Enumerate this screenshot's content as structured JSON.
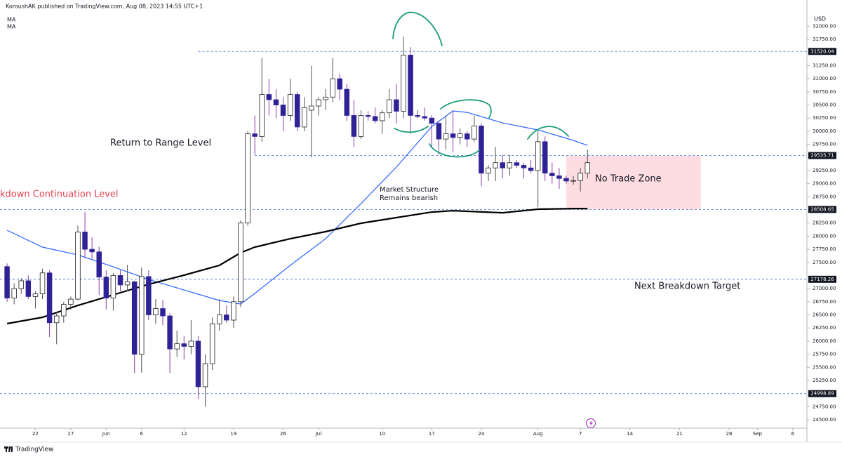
{
  "chart_data": {
    "type": "candlestick",
    "header": "KoroushAK published on TradingView.com, Aug 08, 2023 14:55 UTC+1",
    "currency": "USD",
    "brand": "TradingView",
    "up_color": "#ffffff",
    "down_color": "#2e2396",
    "x": [
      "2023-05-18",
      "2023-05-19",
      "2023-05-20",
      "2023-05-21",
      "2023-05-22",
      "2023-05-23",
      "2023-05-24",
      "2023-05-25",
      "2023-05-26",
      "2023-05-27",
      "2023-05-28",
      "2023-05-29",
      "2023-05-30",
      "2023-05-31",
      "2023-06-01",
      "2023-06-02",
      "2023-06-03",
      "2023-06-04",
      "2023-06-05",
      "2023-06-06",
      "2023-06-07",
      "2023-06-08",
      "2023-06-09",
      "2023-06-10",
      "2023-06-11",
      "2023-06-12",
      "2023-06-13",
      "2023-06-14",
      "2023-06-15",
      "2023-06-16",
      "2023-06-17",
      "2023-06-18",
      "2023-06-19",
      "2023-06-20",
      "2023-06-21",
      "2023-06-22",
      "2023-06-23",
      "2023-06-24",
      "2023-06-25",
      "2023-06-26",
      "2023-06-27",
      "2023-06-28",
      "2023-06-29",
      "2023-06-30",
      "2023-07-01",
      "2023-07-02",
      "2023-07-03",
      "2023-07-04",
      "2023-07-05",
      "2023-07-06",
      "2023-07-07",
      "2023-07-08",
      "2023-07-09",
      "2023-07-10",
      "2023-07-11",
      "2023-07-12",
      "2023-07-13",
      "2023-07-14",
      "2023-07-15",
      "2023-07-16",
      "2023-07-17",
      "2023-07-18",
      "2023-07-19",
      "2023-07-20",
      "2023-07-21",
      "2023-07-22",
      "2023-07-23",
      "2023-07-24",
      "2023-07-25",
      "2023-07-26",
      "2023-07-27",
      "2023-07-28",
      "2023-07-29",
      "2023-07-30",
      "2023-07-31",
      "2023-08-01",
      "2023-08-02",
      "2023-08-03",
      "2023-08-04",
      "2023-08-05",
      "2023-08-06",
      "2023-08-07",
      "2023-08-08"
    ],
    "open": [
      27420,
      26820,
      27000,
      27150,
      26850,
      26900,
      27300,
      26350,
      26480,
      26700,
      26800,
      28080,
      27750,
      27700,
      27220,
      26820,
      27250,
      27070,
      27130,
      25750,
      27230,
      26500,
      26620,
      26480,
      25850,
      25950,
      25900,
      26000,
      25130,
      25570,
      26330,
      26500,
      26400,
      26750,
      28250,
      29950,
      29900,
      30700,
      30600,
      30500,
      30300,
      30700,
      30080,
      30400,
      30480,
      30600,
      30650,
      31000,
      30800,
      30300,
      29900,
      30300,
      30280,
      30200,
      30350,
      30600,
      30380,
      31450,
      30300,
      30280,
      30250,
      30150,
      29850,
      29950,
      29880,
      29950,
      29850,
      30100,
      29200,
      29300,
      29400,
      29300,
      29400,
      29350,
      29300,
      29250,
      29800,
      29200,
      29150,
      29100,
      29050,
      29060,
      29200
    ],
    "high": [
      27480,
      27100,
      27200,
      27250,
      26950,
      27380,
      27350,
      26550,
      26750,
      26850,
      28200,
      28460,
      27980,
      27800,
      27350,
      27300,
      27350,
      27450,
      27150,
      27400,
      27350,
      26800,
      26780,
      26530,
      26200,
      26100,
      26400,
      26100,
      25750,
      26450,
      26800,
      26680,
      26850,
      28300,
      30000,
      30300,
      31400,
      31000,
      30800,
      30650,
      31000,
      30750,
      30650,
      31250,
      30650,
      30800,
      31400,
      31100,
      30900,
      30600,
      30400,
      30380,
      30450,
      30400,
      30800,
      30900,
      31800,
      31600,
      30400,
      30450,
      30300,
      30200,
      30300,
      30400,
      30050,
      30000,
      30300,
      30150,
      29350,
      29700,
      29550,
      29550,
      29450,
      29400,
      29450,
      30000,
      29900,
      29400,
      29300,
      29150,
      29150,
      29300,
      29650
    ],
    "low": [
      26750,
      26700,
      26900,
      26800,
      26620,
      26800,
      26080,
      25940,
      26350,
      26600,
      26780,
      27580,
      27560,
      26880,
      26600,
      26580,
      26950,
      26950,
      25390,
      25400,
      26400,
      26330,
      26300,
      25390,
      25700,
      25650,
      25750,
      24900,
      24750,
      25450,
      26200,
      26350,
      26250,
      26650,
      28200,
      29550,
      29800,
      30300,
      30250,
      30000,
      30200,
      30000,
      30000,
      29500,
      30300,
      30400,
      30550,
      30600,
      30200,
      29700,
      29850,
      30200,
      30150,
      29950,
      30250,
      30150,
      30250,
      29950,
      30250,
      30200,
      29700,
      29550,
      29650,
      29600,
      29750,
      29700,
      29800,
      28950,
      29050,
      29050,
      29100,
      29150,
      29300,
      29100,
      29200,
      28550,
      29050,
      29000,
      28900,
      29000,
      28980,
      28850,
      29100
    ],
    "close": [
      26820,
      27000,
      27150,
      26850,
      26900,
      27300,
      26350,
      26480,
      26700,
      26800,
      28080,
      27750,
      27700,
      27220,
      26820,
      27250,
      27070,
      27130,
      25750,
      27230,
      26500,
      26620,
      26480,
      25850,
      25950,
      25900,
      26000,
      25130,
      25570,
      26330,
      26500,
      26400,
      26750,
      28250,
      29950,
      29900,
      30700,
      30600,
      30500,
      30300,
      30700,
      30080,
      30450,
      30480,
      30600,
      30650,
      31000,
      30800,
      30300,
      29900,
      30300,
      30280,
      30200,
      30350,
      30600,
      30380,
      31450,
      30300,
      30280,
      30250,
      30150,
      29850,
      29950,
      29880,
      29950,
      29850,
      30100,
      29200,
      29300,
      29400,
      29300,
      29400,
      29350,
      29300,
      29250,
      29800,
      29200,
      29150,
      29100,
      29050,
      29060,
      29200,
      29400
    ],
    "series": [
      {
        "name": "MA",
        "color": "#2962ff",
        "x": [
          "2023-05-18",
          "2023-05-23",
          "2023-05-28",
          "2023-06-02",
          "2023-06-07",
          "2023-06-12",
          "2023-06-17",
          "2023-06-20",
          "2023-06-22",
          "2023-06-27",
          "2023-07-02",
          "2023-07-07",
          "2023-07-12",
          "2023-07-17",
          "2023-07-20",
          "2023-07-22",
          "2023-07-27",
          "2023-08-01",
          "2023-08-06",
          "2023-08-08"
        ],
        "values": [
          28112,
          27791,
          27643,
          27416,
          27175,
          26974,
          26774,
          26707,
          26908,
          27443,
          27951,
          28620,
          29316,
          30091,
          30386,
          30359,
          30158,
          30024,
          29824,
          29730
        ]
      },
      {
        "name": "MA",
        "color": "#000000",
        "x": [
          "2023-05-18",
          "2023-05-23",
          "2023-05-28",
          "2023-06-02",
          "2023-06-07",
          "2023-06-12",
          "2023-06-17",
          "2023-06-20",
          "2023-06-22",
          "2023-06-27",
          "2023-07-02",
          "2023-07-07",
          "2023-07-12",
          "2023-07-17",
          "2023-07-20",
          "2023-07-22",
          "2023-07-27",
          "2023-08-01",
          "2023-08-06",
          "2023-08-08"
        ],
        "values": [
          26333,
          26453,
          26680,
          26881,
          27082,
          27256,
          27443,
          27684,
          27791,
          27951,
          28085,
          28246,
          28353,
          28459,
          28486,
          28473,
          28446,
          28513,
          28526,
          28526
        ]
      }
    ],
    "levels": [
      {
        "value": 31520.04,
        "start": "2023-06-14"
      },
      {
        "value": 29535.71,
        "start": "2023-06-22"
      },
      {
        "value": 28508.65,
        "start": "2023-05-17"
      },
      {
        "value": 27178.26,
        "start": "2023-05-17"
      },
      {
        "value": 24998.89,
        "start": "2023-05-17"
      }
    ],
    "zone": {
      "label": "No Trade Zone",
      "x": [
        "2023-08-05",
        "2023-08-24"
      ],
      "y": [
        28510,
        29530
      ]
    },
    "annotations": {
      "range": "Return to Range Level",
      "continuation": "kdown Continuation Level",
      "structure_1": "Market Structure",
      "structure_2": "Remains bearish",
      "target": "Next Breakdown Target"
    },
    "xlim": [
      "2023-05-17",
      "2023-09-08"
    ],
    "xticks": [
      {
        "value": "2023-05-22",
        "label": "22"
      },
      {
        "value": "2023-05-27",
        "label": "27"
      },
      {
        "value": "2023-06-01",
        "label": "Jun"
      },
      {
        "value": "2023-06-06",
        "label": "6"
      },
      {
        "value": "2023-06-12",
        "label": "12"
      },
      {
        "value": "2023-06-19",
        "label": "19"
      },
      {
        "value": "2023-06-26",
        "label": "26"
      },
      {
        "value": "2023-07-01",
        "label": "Jul"
      },
      {
        "value": "2023-07-10",
        "label": "10"
      },
      {
        "value": "2023-07-17",
        "label": "17"
      },
      {
        "value": "2023-07-24",
        "label": "24"
      },
      {
        "value": "2023-08-01",
        "label": "Aug"
      },
      {
        "value": "2023-08-07",
        "label": "7"
      },
      {
        "value": "2023-08-14",
        "label": "14"
      },
      {
        "value": "2023-08-21",
        "label": "21"
      },
      {
        "value": "2023-08-28",
        "label": "28"
      },
      {
        "value": "2023-09-01",
        "label": "Sep"
      },
      {
        "value": "2023-09-06",
        "label": "6"
      }
    ],
    "ylim": [
      24340,
      32500
    ],
    "yticks": [
      {
        "value": 32000,
        "label": "32000.00"
      },
      {
        "value": 31750,
        "label": "31750.00"
      },
      {
        "value": 31250,
        "label": "31250.00"
      },
      {
        "value": 31000,
        "label": "31000.00"
      },
      {
        "value": 30750,
        "label": "30750.00"
      },
      {
        "value": 30500,
        "label": "30500.00"
      },
      {
        "value": 30250,
        "label": "30250.00"
      },
      {
        "value": 30000,
        "label": "30000.00"
      },
      {
        "value": 29750,
        "label": "29750.00"
      },
      {
        "value": 29250,
        "label": "29250.00"
      },
      {
        "value": 29000,
        "label": "29000.00"
      },
      {
        "value": 28750,
        "label": "28750.00"
      },
      {
        "value": 28250,
        "label": "28250.00"
      },
      {
        "value": 28000,
        "label": "28000.00"
      },
      {
        "value": 27750,
        "label": "27750.00"
      },
      {
        "value": 27500,
        "label": "27500.00"
      },
      {
        "value": 27000,
        "label": "27000.00"
      },
      {
        "value": 26750,
        "label": "26750.00"
      },
      {
        "value": 26500,
        "label": "26500.00"
      },
      {
        "value": 26250,
        "label": "26250.00"
      },
      {
        "value": 26000,
        "label": "26000.00"
      },
      {
        "value": 25750,
        "label": "25750.00"
      },
      {
        "value": 25500,
        "label": "25500.00"
      },
      {
        "value": 25250,
        "label": "25250.00"
      },
      {
        "value": 24750,
        "label": "24750.00"
      },
      {
        "value": 24500,
        "label": "24500.00"
      }
    ],
    "grid": false
  }
}
